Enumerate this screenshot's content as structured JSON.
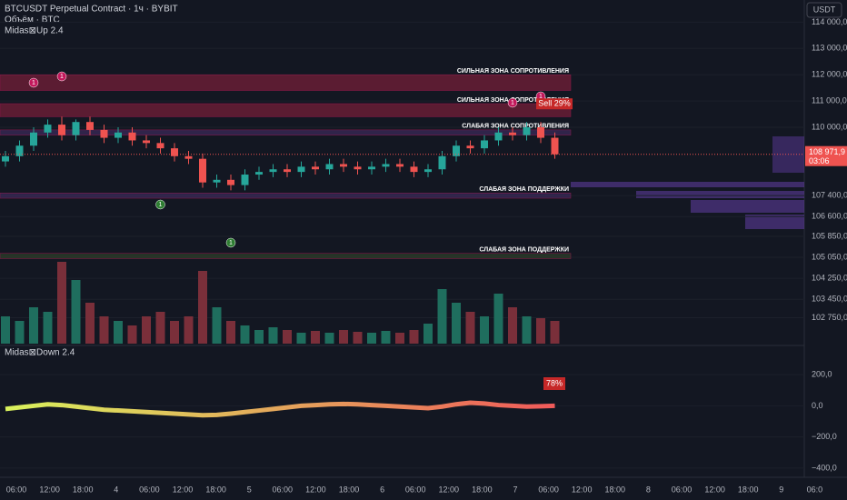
{
  "header": {
    "symbol": "BTCUSDT Perpetual Contract · 1ч · BYBIT",
    "volume": "Объём · BTC",
    "indicator": "Midas⊠Up 2.4",
    "oscillator": "Midas⊠Down 2.4",
    "currency": "USDT"
  },
  "chart_data": [
    {
      "type": "candlestick",
      "open": [
        108700,
        108900,
        109300,
        109800,
        110100,
        109700,
        110200,
        109900,
        109600,
        109800,
        109500,
        109400,
        109200,
        108900,
        108800,
        107900,
        108000,
        107800,
        108200,
        108300,
        108400,
        108300,
        108500,
        108400,
        108600,
        108500,
        108400,
        108500,
        108600,
        108500,
        108300,
        108400,
        108900,
        109300,
        109200,
        109500,
        109800,
        109700,
        110000,
        109600
      ],
      "high": [
        109100,
        109500,
        110000,
        110300,
        110400,
        110300,
        110400,
        110100,
        110000,
        110000,
        109700,
        109600,
        109400,
        109100,
        109000,
        108200,
        108200,
        108400,
        108500,
        108600,
        108600,
        108700,
        108700,
        108800,
        108800,
        108700,
        108700,
        108800,
        108800,
        108700,
        108600,
        109100,
        109500,
        109500,
        109700,
        110000,
        110000,
        110200,
        110200,
        109800
      ],
      "low": [
        108500,
        108700,
        109100,
        109600,
        109500,
        109500,
        109700,
        109400,
        109400,
        109300,
        109200,
        109000,
        108700,
        108600,
        107700,
        107700,
        107600,
        107600,
        108000,
        108100,
        108100,
        108100,
        108200,
        108200,
        108300,
        108200,
        108200,
        108300,
        108300,
        108100,
        108100,
        108200,
        108700,
        109000,
        109000,
        109300,
        109500,
        109500,
        109400,
        108800
      ],
      "close": [
        108900,
        109300,
        109800,
        110100,
        109700,
        110200,
        109900,
        109600,
        109800,
        109500,
        109400,
        109200,
        108900,
        108800,
        107900,
        108000,
        107800,
        108200,
        108300,
        108400,
        108300,
        108500,
        108400,
        108600,
        108500,
        108400,
        108500,
        108600,
        108500,
        108300,
        108400,
        108900,
        109300,
        109200,
        109500,
        109800,
        109700,
        110000,
        109600,
        108971.9
      ],
      "volume": [
        30,
        25,
        40,
        35,
        90,
        70,
        45,
        30,
        25,
        20,
        30,
        35,
        25,
        30,
        80,
        40,
        25,
        20,
        15,
        18,
        15,
        12,
        14,
        12,
        15,
        13,
        12,
        14,
        12,
        15,
        22,
        60,
        45,
        35,
        30,
        55,
        40,
        30,
        28,
        25
      ],
      "last_price_label": "108 971,9",
      "countdown": "03:06",
      "ylim": [
        101765,
        114844
      ],
      "yticks": [
        {
          "value": 114000,
          "label": "114 000,0"
        },
        {
          "value": 113000,
          "label": "113 000,0"
        },
        {
          "value": 112000,
          "label": "112 000,0"
        },
        {
          "value": 111000,
          "label": "111 000,0"
        },
        {
          "value": 110000,
          "label": "110 000,0"
        },
        {
          "value": 107400,
          "label": "107 400,0"
        },
        {
          "value": 106600,
          "label": "106 600,0"
        },
        {
          "value": 105850,
          "label": "105 850,0"
        },
        {
          "value": 105050,
          "label": "105 050,0"
        },
        {
          "value": 104250,
          "label": "104 250,0"
        },
        {
          "value": 103450,
          "label": "103 450,0"
        },
        {
          "value": 102750,
          "label": "102 750,0"
        }
      ],
      "zones": [
        {
          "label": "СИЛЬНАЯ ЗОНА СОПРОТИВЛЕНИЯ",
          "low": 111400,
          "high": 112000,
          "color": "#7a1f3a"
        },
        {
          "label": "СИЛЬНАЯ ЗОНА СОПРОТИВЛЕНИЯ",
          "low": 110400,
          "high": 110900,
          "color": "#7a1f3a"
        },
        {
          "label": "СЛАБАЯ ЗОНА СОПРОТИВЛЕНИЯ",
          "low": 109700,
          "high": 109900,
          "color": "#3d2a5c"
        },
        {
          "label": "СЛАБАЯ ЗОНА ПОДДЕРЖКИ",
          "low": 107300,
          "high": 107500,
          "color": "#3d2a5c"
        },
        {
          "label": "СЛАБАЯ ЗОНА ПОДДЕРЖКИ",
          "low": 105000,
          "high": 105200,
          "color": "#2f3f2a"
        }
      ],
      "signals": [
        {
          "label": "1",
          "candle": 2,
          "price": 111695,
          "color": "#c2185b"
        },
        {
          "label": "1",
          "candle": 4,
          "price": 111937,
          "color": "#c2185b"
        },
        {
          "label": "1",
          "candle": 36,
          "price": 110934,
          "color": "#c2185b"
        },
        {
          "label": "1",
          "candle": 38,
          "price": 111176,
          "color": "#c2185b"
        },
        {
          "label": "1",
          "candle": 11,
          "price": 107059,
          "color": "#2e7d32"
        },
        {
          "label": "1",
          "candle": 16,
          "price": 105606,
          "color": "#2e7d32"
        }
      ],
      "sell_label": "Sell 29%"
    },
    {
      "type": "line",
      "name": "oscillator",
      "values": [
        -20,
        -10,
        0,
        10,
        5,
        -5,
        -15,
        -25,
        -30,
        -35,
        -40,
        -45,
        -50,
        -55,
        -60,
        -58,
        -50,
        -40,
        -30,
        -20,
        -10,
        0,
        5,
        10,
        12,
        10,
        5,
        0,
        -5,
        -10,
        -15,
        -5,
        10,
        20,
        15,
        5,
        0,
        -5,
        -3,
        0
      ],
      "colors": [
        "#d9f25c",
        "#f05a5a"
      ],
      "ylim": [
        -459,
        388
      ],
      "yticks": [
        {
          "value": 200,
          "label": "200,0"
        },
        {
          "value": 0,
          "label": "0,0"
        },
        {
          "value": -200,
          "label": "−200,0"
        },
        {
          "value": -400,
          "label": "−400,0"
        }
      ],
      "badge": "78%"
    },
    {
      "type": "time-axis",
      "categories": [
        "06:00",
        "12:00",
        "18:00",
        "4",
        "06:00",
        "12:00",
        "18:00",
        "5",
        "06:00",
        "12:00",
        "18:00",
        "6",
        "06:00",
        "12:00",
        "18:00",
        "7",
        "06:00",
        "12:00",
        "18:00",
        "8",
        "06:00",
        "12:00",
        "18:00",
        "9",
        "06:0"
      ]
    }
  ]
}
